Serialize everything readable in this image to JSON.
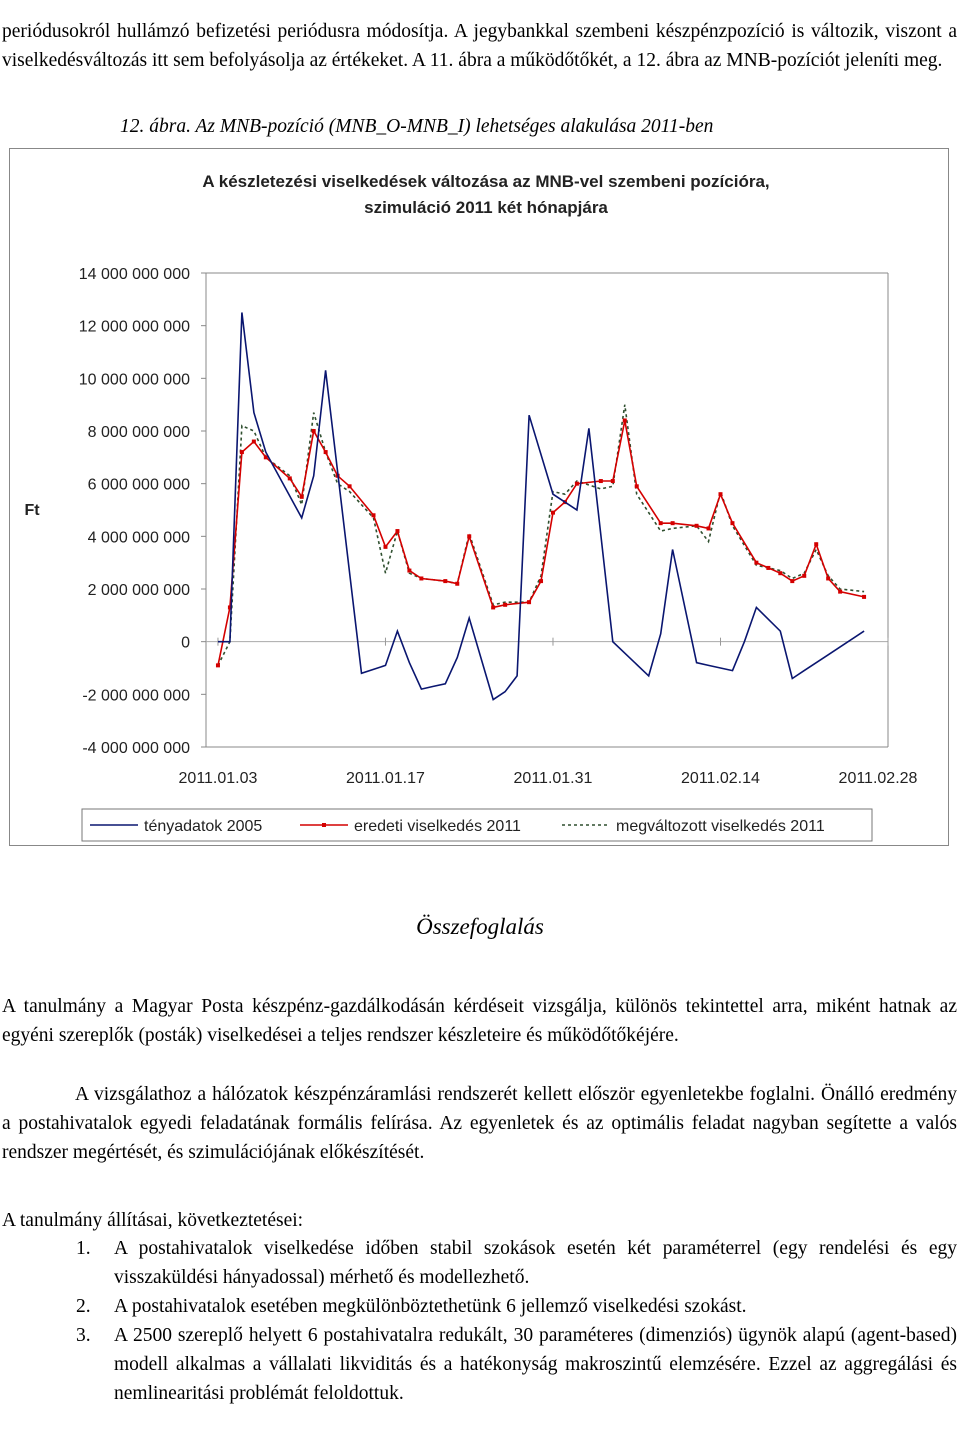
{
  "intro_text": "periódusokról hullámzó befizetési periódusra módosítja. A jegybankkal szembeni készpénzpozíció is változik, viszont a viselkedésváltozás itt sem befolyásolja az értékeket. A 11. ábra a működőtőkét, a 12. ábra az MNB-pozíciót jeleníti meg.",
  "figure_caption": "12. ábra. Az MNB-pozíció (MNB_O-MNB_I) lehetséges alakulása 2011-ben",
  "chart_data": {
    "type": "line",
    "title_line1": "A készletezési viselkedések változása az MNB-vel szembeni pozícióra,",
    "title_line2": "szimuláció 2011 két hónapjára",
    "xlabel": "",
    "ylabel": "Ft",
    "ylim": [
      -4000000000,
      14000000000
    ],
    "y_ticks": [
      14000000000,
      12000000000,
      10000000000,
      8000000000,
      6000000000,
      4000000000,
      2000000000,
      0,
      -2000000000,
      -4000000000
    ],
    "y_tick_labels": [
      "14 000 000 000",
      "12 000 000 000",
      "10 000 000 000",
      "8 000 000 000",
      "6 000 000 000",
      "4 000 000 000",
      "2 000 000 000",
      "0",
      "-2 000 000 000",
      "-4 000 000 000"
    ],
    "x_tick_labels": [
      "2011.01.03",
      "2011.01.17",
      "2011.01.31",
      "2011.02.14",
      "2011.02.28"
    ],
    "x_tick_days": [
      0,
      14,
      28,
      42,
      56
    ],
    "grid": false,
    "legend_position": "bottom",
    "series": [
      {
        "name": "tényadatok 2005",
        "color": "#0a1670",
        "style": "solid",
        "x": [
          0,
          1,
          2,
          3,
          4,
          7,
          8,
          9,
          12,
          14,
          15,
          16,
          17,
          18,
          19,
          20,
          21,
          23,
          24,
          25,
          26,
          28,
          29,
          30,
          31,
          33,
          36,
          37,
          38,
          40,
          41,
          42,
          43,
          44,
          45,
          47,
          48,
          49,
          50,
          51,
          52,
          54
        ],
        "y": [
          0,
          0,
          12500000000,
          8700000000,
          7200000000,
          4700000000,
          6300000000,
          10300000000,
          -1200000000,
          -900000000,
          400000000,
          -800000000,
          -1800000000,
          -1700000000,
          -1600000000,
          -600000000,
          900000000,
          -2200000000,
          -1900000000,
          -1300000000,
          8600000000,
          5600000000,
          5300000000,
          5000000000,
          8100000000,
          0,
          -1300000000,
          300000000,
          3500000000,
          -800000000,
          -900000000,
          -1000000000,
          -1100000000,
          0,
          1300000000,
          400000000,
          -1400000000,
          -1100000000,
          -800000000,
          -500000000,
          -200000000,
          400000000
        ]
      },
      {
        "name": "eredeti viselkedés 2011",
        "color": "#d40000",
        "style": "solid-marker",
        "x": [
          0,
          1,
          2,
          3,
          4,
          6,
          7,
          8,
          9,
          10,
          11,
          13,
          14,
          15,
          16,
          17,
          19,
          20,
          21,
          23,
          24,
          26,
          27,
          28,
          29,
          30,
          32,
          33,
          34,
          35,
          37,
          38,
          40,
          41,
          42,
          43,
          45,
          46,
          47,
          48,
          49,
          50,
          51,
          52,
          54
        ],
        "y": [
          -900000000,
          1300000000,
          7200000000,
          7600000000,
          7000000000,
          6200000000,
          5500000000,
          8000000000,
          7200000000,
          6300000000,
          5900000000,
          4800000000,
          3600000000,
          4200000000,
          2700000000,
          2400000000,
          2300000000,
          2200000000,
          4000000000,
          1300000000,
          1400000000,
          1500000000,
          2300000000,
          4900000000,
          5300000000,
          6000000000,
          6100000000,
          6100000000,
          8400000000,
          5900000000,
          4500000000,
          4500000000,
          4400000000,
          4300000000,
          5600000000,
          4500000000,
          3000000000,
          2800000000,
          2600000000,
          2300000000,
          2500000000,
          3700000000,
          2400000000,
          1900000000,
          1700000000
        ]
      },
      {
        "name": "megváltozott viselkedés 2011",
        "color": "#2f4f2f",
        "style": "dashed",
        "x": [
          0,
          1,
          2,
          3,
          4,
          6,
          7,
          8,
          9,
          10,
          11,
          13,
          14,
          15,
          16,
          17,
          19,
          20,
          21,
          23,
          24,
          26,
          27,
          28,
          29,
          30,
          32,
          33,
          34,
          35,
          37,
          38,
          40,
          41,
          42,
          43,
          45,
          46,
          47,
          48,
          49,
          50,
          51,
          52,
          54
        ],
        "y": [
          -900000000,
          0,
          8200000000,
          8000000000,
          7000000000,
          6300000000,
          5200000000,
          8700000000,
          7200000000,
          6000000000,
          5700000000,
          4700000000,
          2600000000,
          4200000000,
          2600000000,
          2400000000,
          2300000000,
          2200000000,
          4100000000,
          1400000000,
          1500000000,
          1500000000,
          2500000000,
          5700000000,
          5600000000,
          6100000000,
          5800000000,
          5900000000,
          9000000000,
          5600000000,
          4200000000,
          4300000000,
          4400000000,
          3800000000,
          5700000000,
          4400000000,
          2900000000,
          2800000000,
          2700000000,
          2400000000,
          2600000000,
          3500000000,
          2500000000,
          2000000000,
          1900000000
        ]
      }
    ]
  },
  "section_title": "Összefoglalás",
  "paragraph1": "A tanulmány a Magyar Posta készpénz-gazdálkodásán kérdéseit vizsgálja, különös tekintettel arra, miként hatnak az egyéni szereplők (posták) viselkedései a teljes rendszer készleteire és működőtőkéjére.",
  "paragraph2": "A vizsgálathoz a hálózatok készpénzáramlási rendszerét kellett először egyenletekbe foglalni. Önálló eredmény a postahivatalok egyedi feladatának formális felírása. Az egyenletek és az optimális feladat nagyban segítette a valós rendszer megértését, és szimulációjának előkészítését.",
  "claims_heading": "A tanulmány állításai, következtetései:",
  "claims": [
    {
      "num": "1.",
      "text": "A postahivatalok viselkedése időben stabil szokások esetén két paraméterrel (egy rendelési és egy visszaküldési hányadossal) mérhető és modellezhető."
    },
    {
      "num": "2.",
      "text": "A postahivatalok esetében megkülönböztethetünk 6 jellemző viselkedési szokást."
    },
    {
      "num": "3.",
      "text": "A 2500 szereplő helyett 6 postahivatalra redukált, 30 paraméteres (dimenziós) ügynök alapú (agent-based) modell alkalmas a vállalati likviditás és a hatékonyság makroszintű elemzésére. Ezzel az aggregálási és nemlinearitási problémát feloldottuk."
    }
  ]
}
